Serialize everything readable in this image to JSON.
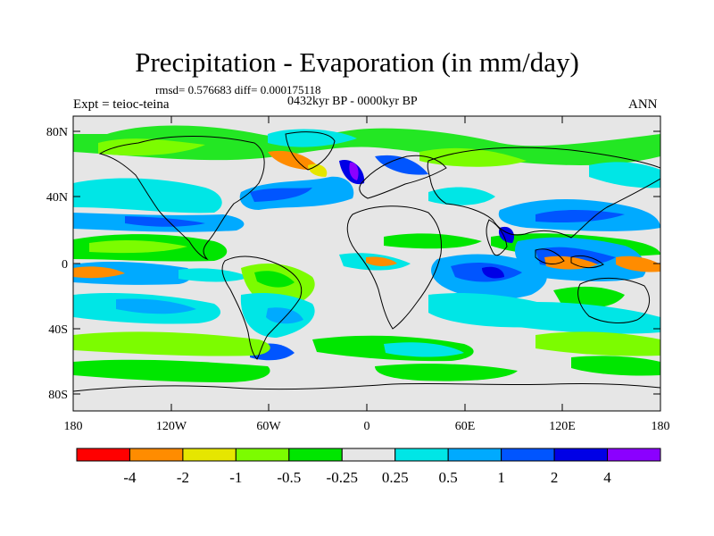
{
  "title": "Precipitation - Evaporation (in mm/day)",
  "stats": "rmsd= 0.576683 diff= 0.000175118",
  "period": "0432kyr BP - 0000kyr BP",
  "experiment": "Expt = teioc-teina",
  "season": "ANN",
  "map": {
    "lon_ticks": [
      "180",
      "120W",
      "60W",
      "0",
      "60E",
      "120E",
      "180"
    ],
    "lat_ticks": [
      "80N",
      "40N",
      "0",
      "40S",
      "80S"
    ],
    "background_color": "#e6e6e6"
  },
  "colorbar": {
    "colors": [
      "#ff0000",
      "#ff8c00",
      "#e6e600",
      "#7cfc00",
      "#00e600",
      "#e6e6e6",
      "#00e6e6",
      "#00aaff",
      "#0055ff",
      "#0000e6",
      "#8b00ff"
    ],
    "labels": [
      "-4",
      "-2",
      "-1",
      "-0.5",
      "-0.25",
      "0.25",
      "0.5",
      "1",
      "2",
      "4"
    ]
  }
}
